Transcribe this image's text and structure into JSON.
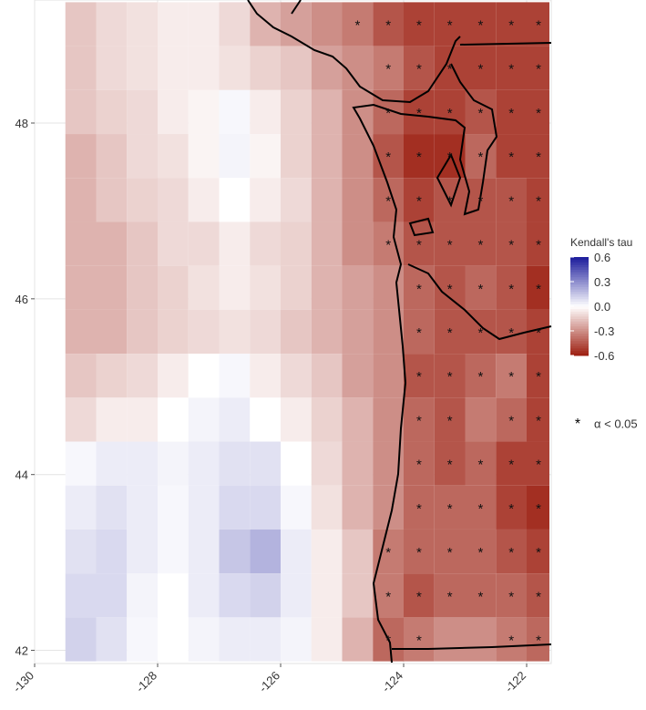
{
  "chart_data": {
    "type": "heatmap",
    "lon_start": -129.5,
    "lon_step": 0.5,
    "lat_start": 49.375,
    "lat_step": -0.5,
    "xlim": [
      -130,
      -121.6
    ],
    "ylim": [
      41.85,
      49.4
    ],
    "xticks": [
      -130,
      -128,
      -126,
      -124,
      -122
    ],
    "yticks": [
      42,
      44,
      46,
      48
    ],
    "grid": true,
    "colors": [
      "#9b1c0e",
      "#ffffff",
      "#1c1c9c"
    ],
    "colorbar_title": "Kendall's tau",
    "colorbar_lim": [
      -0.6,
      0.6
    ],
    "colorbar_ticks": [
      0.6,
      0.3,
      {
        "value": 0,
        "label": "0.0"
      },
      -0.3,
      -0.6
    ],
    "significance_label": "α < 0.05",
    "values": [
      [
        -0.15,
        -0.1,
        -0.08,
        -0.05,
        -0.05,
        -0.1,
        -0.2,
        -0.25,
        -0.3,
        -0.35,
        -0.45,
        -0.5,
        -0.5,
        -0.5,
        -0.5,
        -0.5
      ],
      [
        -0.15,
        -0.1,
        -0.08,
        -0.05,
        -0.05,
        -0.08,
        -0.12,
        -0.15,
        -0.25,
        -0.3,
        -0.35,
        -0.45,
        -0.5,
        -0.5,
        -0.5,
        -0.5
      ],
      [
        -0.15,
        -0.12,
        -0.1,
        -0.05,
        -0.03,
        0.02,
        -0.05,
        -0.12,
        -0.2,
        -0.3,
        -0.4,
        -0.5,
        -0.5,
        -0.45,
        -0.5,
        -0.5
      ],
      [
        -0.2,
        -0.15,
        -0.1,
        -0.08,
        -0.03,
        0.03,
        -0.03,
        -0.12,
        -0.2,
        -0.3,
        -0.45,
        -0.55,
        -0.55,
        -0.4,
        -0.5,
        -0.5
      ],
      [
        -0.2,
        -0.15,
        -0.12,
        -0.1,
        -0.05,
        0,
        -0.05,
        -0.1,
        -0.2,
        -0.3,
        -0.4,
        -0.5,
        -0.45,
        -0.45,
        -0.45,
        -0.5
      ],
      [
        -0.2,
        -0.2,
        -0.15,
        -0.1,
        -0.1,
        -0.05,
        -0.1,
        -0.12,
        -0.2,
        -0.3,
        -0.35,
        -0.45,
        -0.45,
        -0.45,
        -0.45,
        -0.5
      ],
      [
        -0.2,
        -0.2,
        -0.15,
        -0.12,
        -0.08,
        -0.05,
        -0.08,
        -0.12,
        -0.2,
        -0.25,
        -0.3,
        -0.4,
        -0.45,
        -0.4,
        -0.45,
        -0.55
      ],
      [
        -0.2,
        -0.2,
        -0.15,
        -0.12,
        -0.1,
        -0.08,
        -0.1,
        -0.15,
        -0.2,
        -0.25,
        -0.3,
        -0.4,
        -0.45,
        -0.45,
        -0.45,
        -0.5
      ],
      [
        -0.15,
        -0.12,
        -0.1,
        -0.05,
        0,
        0.02,
        -0.05,
        -0.1,
        -0.15,
        -0.25,
        -0.3,
        -0.45,
        -0.45,
        -0.4,
        -0.35,
        -0.5
      ],
      [
        -0.1,
        -0.05,
        -0.05,
        0,
        0.03,
        0.05,
        0,
        -0.05,
        -0.12,
        -0.2,
        -0.3,
        -0.4,
        -0.45,
        -0.35,
        -0.4,
        -0.5
      ],
      [
        0.02,
        0.05,
        0.05,
        0.03,
        0.05,
        0.08,
        0.08,
        0,
        -0.1,
        -0.2,
        -0.3,
        -0.4,
        -0.45,
        -0.4,
        -0.5,
        -0.5
      ],
      [
        0.05,
        0.08,
        0.05,
        0.02,
        0.05,
        0.1,
        0.1,
        0.02,
        -0.08,
        -0.2,
        -0.3,
        -0.4,
        -0.4,
        -0.4,
        -0.5,
        -0.55
      ],
      [
        0.08,
        0.1,
        0.05,
        0.02,
        0.05,
        0.15,
        0.2,
        0.05,
        -0.05,
        -0.15,
        -0.35,
        -0.4,
        -0.4,
        -0.4,
        -0.45,
        -0.5
      ],
      [
        0.1,
        0.1,
        0.03,
        0,
        0.05,
        0.1,
        0.12,
        0.05,
        -0.05,
        -0.15,
        -0.35,
        -0.45,
        -0.4,
        -0.4,
        -0.4,
        -0.45
      ],
      [
        0.12,
        0.08,
        0.02,
        0,
        0.03,
        0.05,
        0.05,
        0.03,
        -0.05,
        -0.2,
        -0.4,
        -0.35,
        -0.3,
        -0.3,
        -0.35,
        -0.4
      ]
    ],
    "significant": [
      [
        0,
        0,
        0,
        0,
        0,
        0,
        0,
        0,
        0,
        1,
        1,
        1,
        1,
        1,
        1,
        1
      ],
      [
        0,
        0,
        0,
        0,
        0,
        0,
        0,
        0,
        0,
        0,
        1,
        1,
        1,
        1,
        1,
        1
      ],
      [
        0,
        0,
        0,
        0,
        0,
        0,
        0,
        0,
        0,
        0,
        1,
        1,
        1,
        1,
        1,
        1
      ],
      [
        0,
        0,
        0,
        0,
        0,
        0,
        0,
        0,
        0,
        0,
        1,
        1,
        1,
        1,
        1,
        1
      ],
      [
        0,
        0,
        0,
        0,
        0,
        0,
        0,
        0,
        0,
        0,
        1,
        1,
        1,
        1,
        1,
        1
      ],
      [
        0,
        0,
        0,
        0,
        0,
        0,
        0,
        0,
        0,
        0,
        1,
        1,
        1,
        1,
        1,
        1
      ],
      [
        0,
        0,
        0,
        0,
        0,
        0,
        0,
        0,
        0,
        0,
        0,
        1,
        1,
        1,
        1,
        1
      ],
      [
        0,
        0,
        0,
        0,
        0,
        0,
        0,
        0,
        0,
        0,
        0,
        1,
        1,
        1,
        1,
        1
      ],
      [
        0,
        0,
        0,
        0,
        0,
        0,
        0,
        0,
        0,
        0,
        0,
        1,
        1,
        1,
        1,
        1
      ],
      [
        0,
        0,
        0,
        0,
        0,
        0,
        0,
        0,
        0,
        0,
        0,
        1,
        1,
        0,
        1,
        1
      ],
      [
        0,
        0,
        0,
        0,
        0,
        0,
        0,
        0,
        0,
        0,
        0,
        1,
        1,
        1,
        1,
        1
      ],
      [
        0,
        0,
        0,
        0,
        0,
        0,
        0,
        0,
        0,
        0,
        0,
        1,
        1,
        1,
        1,
        1
      ],
      [
        0,
        0,
        0,
        0,
        0,
        0,
        0,
        0,
        0,
        0,
        1,
        1,
        1,
        1,
        1,
        1
      ],
      [
        0,
        0,
        0,
        0,
        0,
        0,
        0,
        0,
        0,
        0,
        1,
        1,
        1,
        1,
        1,
        1
      ],
      [
        0,
        0,
        0,
        0,
        0,
        0,
        0,
        0,
        0,
        0,
        1,
        1,
        0,
        0,
        1,
        1
      ]
    ]
  }
}
